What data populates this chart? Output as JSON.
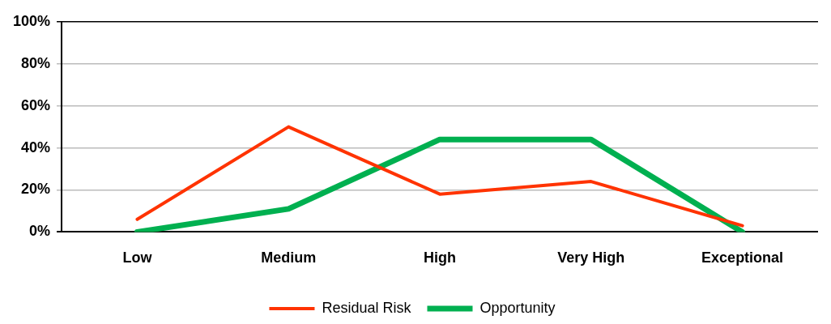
{
  "chart_data": {
    "type": "line",
    "categories": [
      "Low",
      "Medium",
      "High",
      "Very High",
      "Exceptional"
    ],
    "series": [
      {
        "name": "Residual Risk",
        "color": "#ff3300",
        "values": [
          6,
          50,
          18,
          24,
          3
        ]
      },
      {
        "name": "Opportunity",
        "color": "#00b050",
        "values": [
          0,
          11,
          44,
          44,
          0
        ]
      }
    ],
    "ylim": [
      0,
      100
    ],
    "yticks": [
      {
        "value": 0,
        "label": "0%"
      },
      {
        "value": 20,
        "label": "20%"
      },
      {
        "value": 40,
        "label": "40%"
      },
      {
        "value": 60,
        "label": "60%"
      },
      {
        "value": 80,
        "label": "80%"
      },
      {
        "value": 100,
        "label": "100%"
      }
    ],
    "grid": "y",
    "legend": "bottom",
    "marker": "none",
    "line_style": "solid"
  }
}
